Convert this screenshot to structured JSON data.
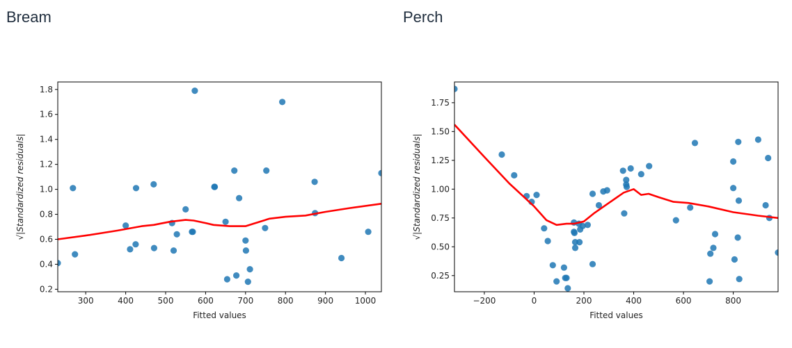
{
  "chart_data": [
    {
      "type": "scatter",
      "title": "Bream",
      "xlabel": "Fitted values",
      "ylabel": "√|Standardized residuals|",
      "xlim": [
        230,
        1040
      ],
      "ylim": [
        0.18,
        1.86
      ],
      "xticks": [
        300,
        400,
        500,
        600,
        700,
        800,
        900,
        1000
      ],
      "yticks": [
        0.2,
        0.4,
        0.6,
        0.8,
        1.0,
        1.2,
        1.4,
        1.6,
        1.8
      ],
      "point_color": "#1f77b4",
      "line_color": "#ff0000",
      "points": [
        [
          230,
          0.41
        ],
        [
          268,
          1.01
        ],
        [
          273,
          0.48
        ],
        [
          400,
          0.71
        ],
        [
          411,
          0.52
        ],
        [
          425,
          0.56
        ],
        [
          426,
          1.01
        ],
        [
          470,
          1.04
        ],
        [
          471,
          0.53
        ],
        [
          516,
          0.73
        ],
        [
          520,
          0.51
        ],
        [
          528,
          0.64
        ],
        [
          550,
          0.84
        ],
        [
          566,
          0.66
        ],
        [
          568,
          0.66
        ],
        [
          573,
          1.79
        ],
        [
          622,
          1.02
        ],
        [
          623,
          1.02
        ],
        [
          650,
          0.74
        ],
        [
          654,
          0.28
        ],
        [
          672,
          1.15
        ],
        [
          677,
          0.31
        ],
        [
          684,
          0.93
        ],
        [
          700,
          0.59
        ],
        [
          701,
          0.51
        ],
        [
          706,
          0.26
        ],
        [
          711,
          0.36
        ],
        [
          749,
          0.69
        ],
        [
          752,
          1.15
        ],
        [
          792,
          1.7
        ],
        [
          873,
          1.06
        ],
        [
          874,
          0.81
        ],
        [
          940,
          0.45
        ],
        [
          1007,
          0.66
        ],
        [
          1040,
          1.13
        ]
      ],
      "trend": [
        [
          230,
          0.6
        ],
        [
          300,
          0.63
        ],
        [
          380,
          0.67
        ],
        [
          440,
          0.705
        ],
        [
          470,
          0.715
        ],
        [
          510,
          0.74
        ],
        [
          550,
          0.755
        ],
        [
          570,
          0.75
        ],
        [
          600,
          0.73
        ],
        [
          620,
          0.715
        ],
        [
          660,
          0.705
        ],
        [
          700,
          0.705
        ],
        [
          720,
          0.725
        ],
        [
          760,
          0.765
        ],
        [
          800,
          0.78
        ],
        [
          850,
          0.79
        ],
        [
          900,
          0.82
        ],
        [
          960,
          0.85
        ],
        [
          1040,
          0.885
        ]
      ]
    },
    {
      "type": "scatter",
      "title": "Perch",
      "xlabel": "Fitted values",
      "ylabel": "√|Standardized residuals|",
      "xlim": [
        -320,
        980
      ],
      "ylim": [
        0.11,
        1.93
      ],
      "xticks": [
        -200,
        0,
        200,
        400,
        600,
        800
      ],
      "yticks": [
        0.25,
        0.5,
        0.75,
        1.0,
        1.25,
        1.5,
        1.75
      ],
      "point_color": "#1f77b4",
      "line_color": "#ff0000",
      "points": [
        [
          -320,
          1.87
        ],
        [
          -130,
          1.3
        ],
        [
          -80,
          1.12
        ],
        [
          -30,
          0.94
        ],
        [
          -10,
          0.89
        ],
        [
          10,
          0.95
        ],
        [
          40,
          0.66
        ],
        [
          55,
          0.55
        ],
        [
          75,
          0.34
        ],
        [
          90,
          0.2
        ],
        [
          120,
          0.32
        ],
        [
          125,
          0.23
        ],
        [
          130,
          0.23
        ],
        [
          135,
          0.14
        ],
        [
          160,
          0.71
        ],
        [
          160,
          0.63
        ],
        [
          162,
          0.62
        ],
        [
          165,
          0.54
        ],
        [
          165,
          0.49
        ],
        [
          180,
          0.7
        ],
        [
          182,
          0.54
        ],
        [
          185,
          0.65
        ],
        [
          195,
          0.68
        ],
        [
          215,
          0.69
        ],
        [
          235,
          0.35
        ],
        [
          235,
          0.96
        ],
        [
          260,
          0.86
        ],
        [
          278,
          0.98
        ],
        [
          293,
          0.99
        ],
        [
          357,
          1.16
        ],
        [
          362,
          0.79
        ],
        [
          370,
          1.04
        ],
        [
          370,
          1.08
        ],
        [
          372,
          1.02
        ],
        [
          388,
          1.18
        ],
        [
          430,
          1.13
        ],
        [
          462,
          1.2
        ],
        [
          570,
          0.73
        ],
        [
          627,
          0.84
        ],
        [
          646,
          1.4
        ],
        [
          705,
          0.2
        ],
        [
          708,
          0.44
        ],
        [
          720,
          0.49
        ],
        [
          727,
          0.61
        ],
        [
          800,
          1.24
        ],
        [
          800,
          1.01
        ],
        [
          805,
          0.39
        ],
        [
          818,
          0.58
        ],
        [
          820,
          1.41
        ],
        [
          822,
          0.9
        ],
        [
          824,
          0.22
        ],
        [
          900,
          1.43
        ],
        [
          930,
          0.86
        ],
        [
          940,
          1.27
        ],
        [
          945,
          0.75
        ],
        [
          980,
          0.45
        ]
      ],
      "trend": [
        [
          -320,
          1.56
        ],
        [
          -200,
          1.28
        ],
        [
          -100,
          1.05
        ],
        [
          0,
          0.85
        ],
        [
          50,
          0.73
        ],
        [
          90,
          0.69
        ],
        [
          130,
          0.7
        ],
        [
          160,
          0.7
        ],
        [
          200,
          0.72
        ],
        [
          240,
          0.79
        ],
        [
          300,
          0.88
        ],
        [
          360,
          0.97
        ],
        [
          400,
          1.0
        ],
        [
          430,
          0.95
        ],
        [
          460,
          0.96
        ],
        [
          500,
          0.93
        ],
        [
          560,
          0.89
        ],
        [
          620,
          0.88
        ],
        [
          700,
          0.85
        ],
        [
          800,
          0.8
        ],
        [
          900,
          0.77
        ],
        [
          980,
          0.75
        ]
      ]
    }
  ]
}
